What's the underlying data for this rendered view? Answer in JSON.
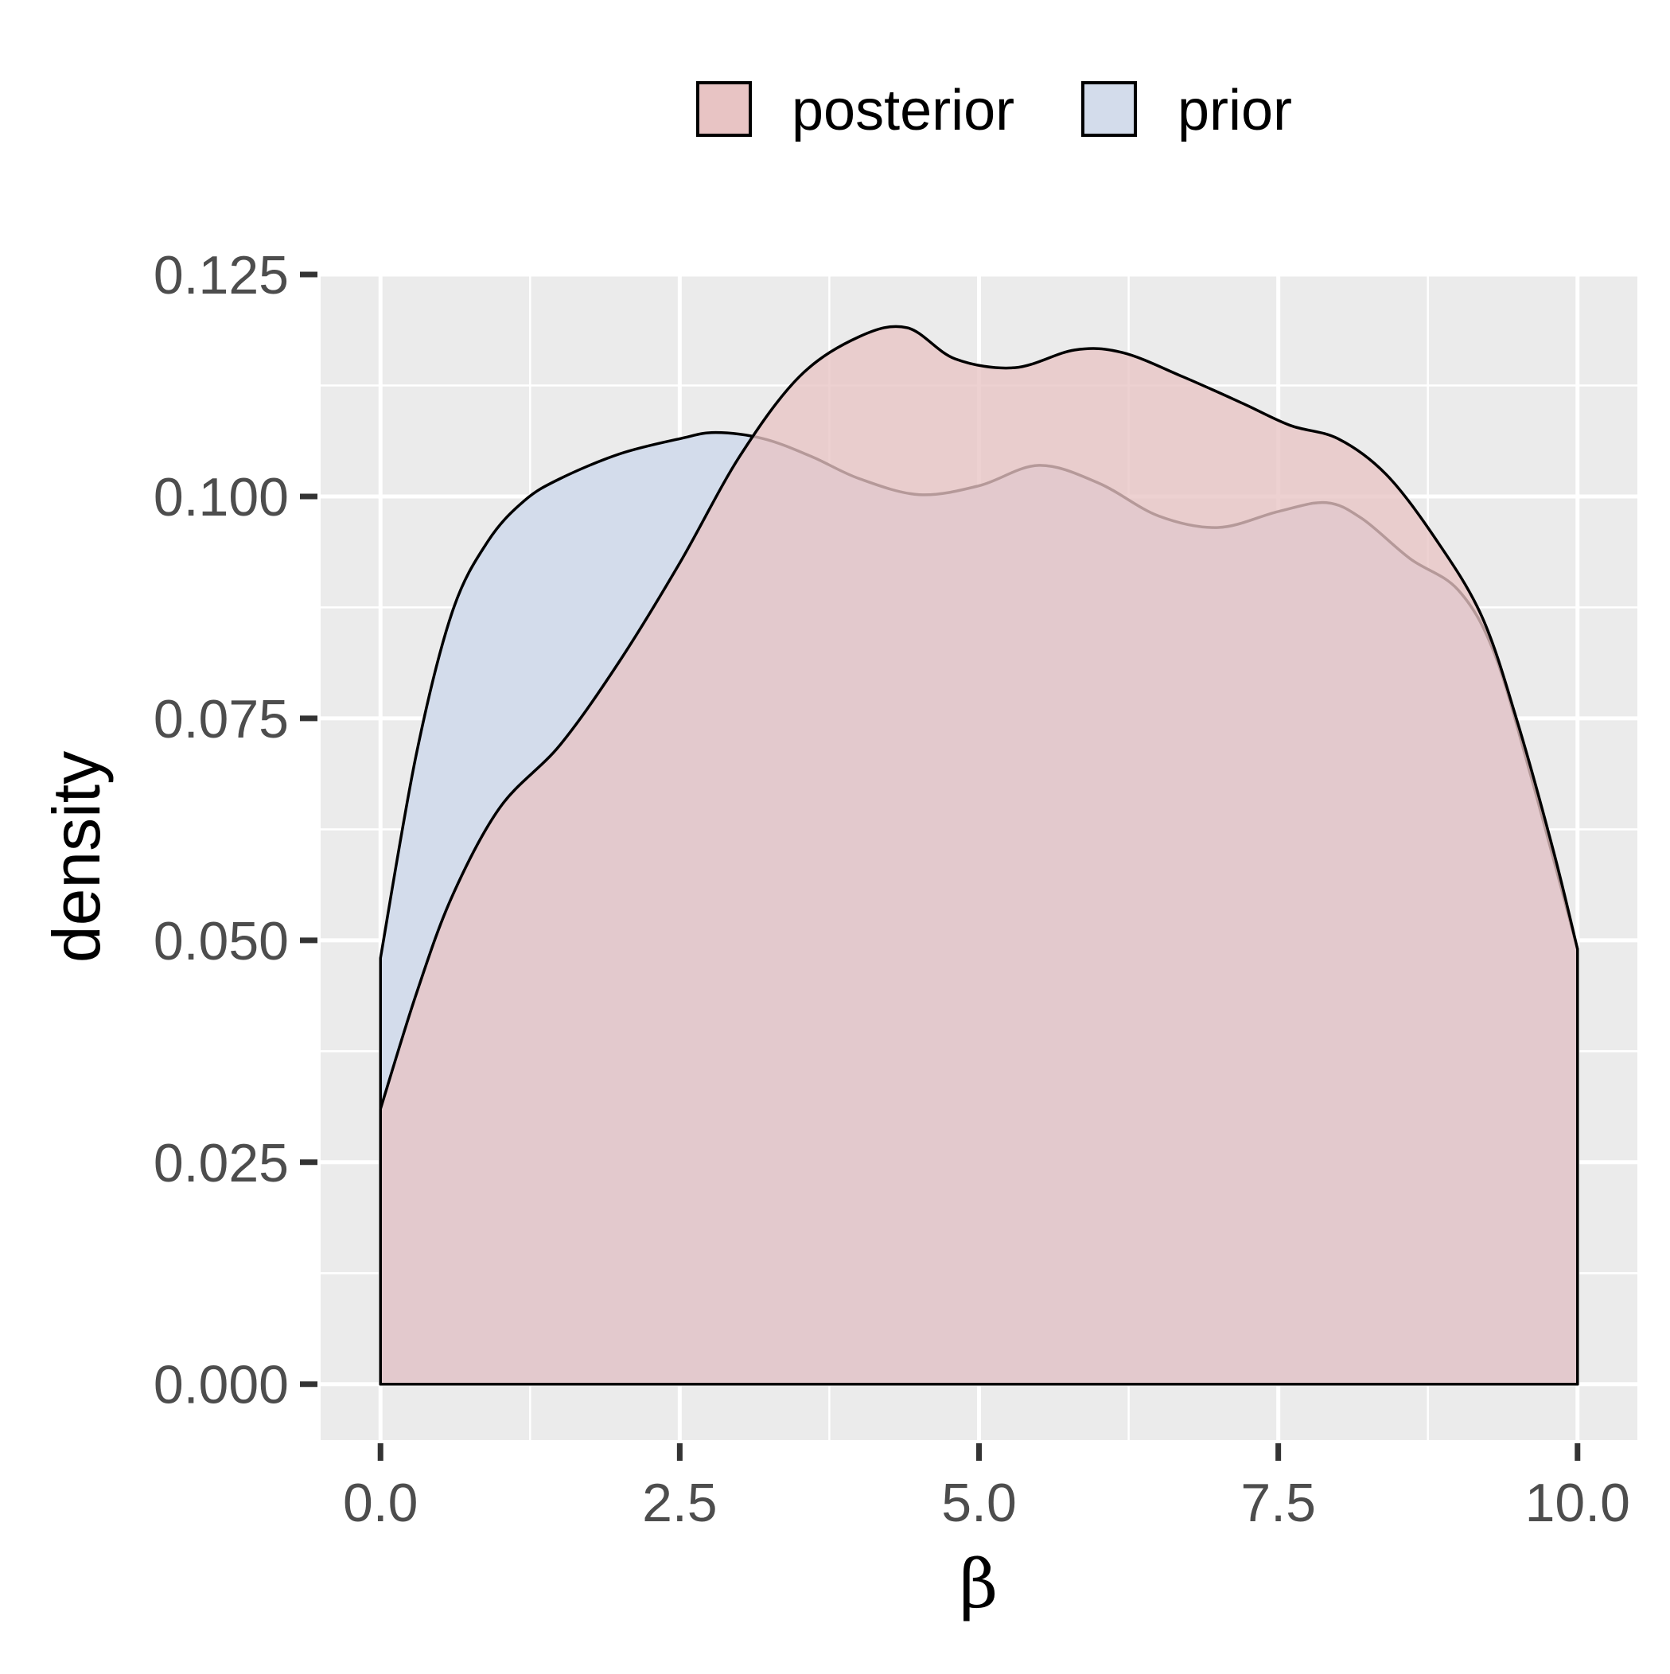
{
  "chart_data": {
    "type": "area",
    "title": "",
    "xlabel": "β",
    "ylabel": "density",
    "xlim": [
      -0.5,
      10.5
    ],
    "ylim": [
      -0.0063,
      0.125
    ],
    "x_ticks": [
      "0.0",
      "2.5",
      "5.0",
      "7.5",
      "10.0"
    ],
    "y_ticks": [
      "0.000",
      "0.025",
      "0.050",
      "0.075",
      "0.100",
      "0.125"
    ],
    "grid": true,
    "panel_background": "#ebebeb",
    "legend": {
      "position": "top",
      "entries": [
        "posterior",
        "prior"
      ]
    },
    "series": [
      {
        "name": "prior",
        "fill": "#d3dceb",
        "x": [
          0,
          0.3,
          0.6,
          0.9,
          1.2,
          1.5,
          2.0,
          2.5,
          2.8,
          3.2,
          3.6,
          4.0,
          4.5,
          5.0,
          5.5,
          6.0,
          6.5,
          7.0,
          7.5,
          7.9,
          8.2,
          8.6,
          9.0,
          9.3,
          9.6,
          10.0
        ],
        "y": [
          0.048,
          0.071,
          0.087,
          0.095,
          0.0995,
          0.102,
          0.1048,
          0.1065,
          0.1072,
          0.1065,
          0.1045,
          0.102,
          0.1002,
          0.1012,
          0.1035,
          0.1015,
          0.0978,
          0.0965,
          0.0983,
          0.0993,
          0.0975,
          0.093,
          0.0895,
          0.0825,
          0.069,
          0.049
        ]
      },
      {
        "name": "posterior",
        "fill": "#e8c4c4",
        "x": [
          0,
          0.3,
          0.6,
          1.0,
          1.5,
          2.0,
          2.5,
          3.0,
          3.5,
          4.0,
          4.4,
          4.8,
          5.3,
          5.8,
          6.2,
          6.7,
          7.2,
          7.6,
          8.0,
          8.4,
          8.8,
          9.2,
          9.5,
          9.8,
          10.0
        ],
        "y": [
          0.031,
          0.044,
          0.055,
          0.065,
          0.072,
          0.0815,
          0.0925,
          0.1045,
          0.1135,
          0.118,
          0.119,
          0.1155,
          0.1145,
          0.1165,
          0.1162,
          0.1135,
          0.1105,
          0.108,
          0.1065,
          0.1025,
          0.0955,
          0.0865,
          0.0745,
          0.06,
          0.049
        ]
      }
    ]
  }
}
